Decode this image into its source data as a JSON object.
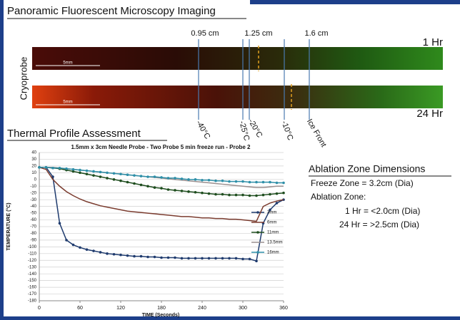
{
  "header": {
    "title": "Panoramic Fluorescent Microscopy Imaging"
  },
  "imaging": {
    "side_label": "Cryoprobe",
    "scale_labels": [
      "5mm",
      "5mm"
    ],
    "distance_labels": [
      "0.95 cm",
      "1.25 cm",
      "1.6 cm"
    ],
    "time_labels": [
      "1 Hr",
      "24 Hr"
    ],
    "isotherm_labels": [
      "-40°C",
      "-25°C",
      "-20°C",
      "-10°C",
      "Ice Front"
    ]
  },
  "section_title": "Thermal Profile Assessment",
  "chart_data": {
    "type": "line",
    "title": "1.5mm x 3cm Needle Probe - Two Probe 5 min freeze run - Probe 2",
    "x_label": "TIME (Seconds)",
    "y_label": "TEMPERATURE (°C)",
    "x": [
      0,
      10,
      20,
      30,
      40,
      50,
      60,
      70,
      80,
      90,
      100,
      110,
      120,
      130,
      140,
      150,
      160,
      170,
      180,
      190,
      200,
      210,
      220,
      230,
      240,
      250,
      260,
      270,
      280,
      290,
      300,
      310,
      320,
      330,
      340,
      350,
      360
    ],
    "xlim": [
      0,
      360
    ],
    "xticks": [
      0,
      60,
      120,
      180,
      240,
      300,
      360
    ],
    "ylim": [
      -180,
      40
    ],
    "yticks": [
      40,
      30,
      20,
      10,
      0,
      -10,
      -20,
      -30,
      -40,
      -50,
      -60,
      -70,
      -80,
      -90,
      -100,
      -110,
      -120,
      -130,
      -140,
      -150,
      -160,
      -170,
      -180
    ],
    "grid": true,
    "series": [
      {
        "name": "3mm",
        "color": "#1f3b6e",
        "markers": true,
        "values": [
          18,
          18,
          4,
          -65,
          -90,
          -97,
          -101,
          -104,
          -106,
          -108,
          -110,
          -111,
          -112,
          -113,
          -114,
          -114,
          -115,
          -115,
          -116,
          -116,
          -116,
          -117,
          -117,
          -117,
          -117,
          -117,
          -117,
          -117,
          -117,
          -117,
          -118,
          -118,
          -121,
          -65,
          -45,
          -35,
          -30
        ]
      },
      {
        "name": "6mm",
        "color": "#7a3b2e",
        "markers": false,
        "values": [
          18,
          15,
          0,
          -10,
          -18,
          -24,
          -29,
          -33,
          -36,
          -39,
          -41,
          -43,
          -45,
          -47,
          -48,
          -49,
          -50,
          -51,
          -52,
          -53,
          -54,
          -55,
          -55,
          -56,
          -57,
          -57,
          -58,
          -58,
          -59,
          -59,
          -60,
          -61,
          -62,
          -40,
          -35,
          -32,
          -30
        ]
      },
      {
        "name": "11mm",
        "color": "#1e4d1e",
        "markers": true,
        "values": [
          18,
          18,
          17,
          16,
          14,
          12,
          10,
          8,
          6,
          4,
          2,
          0,
          -2,
          -4,
          -6,
          -8,
          -10,
          -12,
          -13,
          -15,
          -16,
          -17,
          -18,
          -19,
          -20,
          -21,
          -22,
          -22,
          -23,
          -23,
          -23,
          -24,
          -24,
          -23,
          -22,
          -21,
          -20
        ]
      },
      {
        "name": "13.5mm",
        "color": "#9a8f8f",
        "markers": false,
        "values": [
          18,
          18,
          18,
          17,
          16,
          15,
          14,
          13,
          12,
          11,
          10,
          9,
          8,
          7,
          6,
          5,
          4,
          3,
          2,
          1,
          0,
          -1,
          -2,
          -3,
          -4,
          -5,
          -6,
          -7,
          -8,
          -9,
          -10,
          -11,
          -12,
          -12,
          -11,
          -10,
          -10
        ]
      },
      {
        "name": "16mm",
        "color": "#2e8fa8",
        "markers": true,
        "values": [
          18,
          18,
          17,
          17,
          16,
          15,
          14,
          13,
          12,
          11,
          10,
          9,
          8,
          7,
          6,
          5,
          4,
          4,
          3,
          2,
          2,
          1,
          0,
          0,
          -1,
          -1,
          -2,
          -2,
          -3,
          -3,
          -3,
          -4,
          -4,
          -4,
          -4,
          -5,
          -5
        ]
      }
    ]
  },
  "dimensions": {
    "title": "Ablation Zone Dimensions",
    "freeze_zone": "Freeze Zone = 3.2cm (Dia)",
    "ablation_zone": "Ablation Zone:",
    "one_hr": "1 Hr = <2.0cm (Dia)",
    "twentyfour_hr": "24 Hr = >2.5cm (Dia)"
  }
}
